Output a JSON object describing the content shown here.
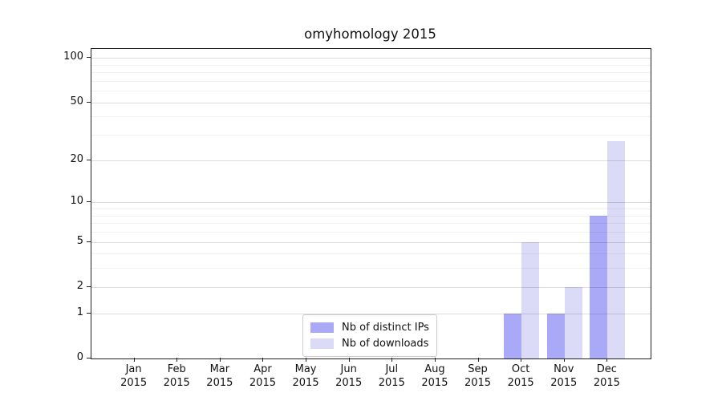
{
  "title": "omyhomology 2015",
  "chart_data": {
    "type": "bar",
    "title": "omyhomology 2015",
    "categories": [
      "Jan",
      "Feb",
      "Mar",
      "Apr",
      "May",
      "Jun",
      "Jul",
      "Aug",
      "Sep",
      "Oct",
      "Nov",
      "Dec"
    ],
    "x_year_label": "2015",
    "series": [
      {
        "name": "Nb of distinct IPs",
        "color": "#a9a9f8",
        "values": [
          0,
          0,
          0,
          0,
          0,
          0,
          0,
          0,
          0,
          1,
          1,
          8
        ]
      },
      {
        "name": "Nb of downloads",
        "color": "#dbdbf8",
        "values": [
          0,
          0,
          0,
          0,
          0,
          0,
          0,
          0,
          0,
          5,
          2,
          27
        ]
      }
    ],
    "xlabel": "",
    "ylabel": "",
    "y_scale": "log10(1+y)",
    "y_ticks": [
      0,
      1,
      2,
      5,
      10,
      20,
      50,
      100
    ],
    "y_minor_gridlines": [
      3,
      4,
      6,
      7,
      8,
      9,
      30,
      40,
      60,
      70,
      80,
      90
    ],
    "ylim": [
      0,
      115
    ],
    "grid": "horizontal",
    "legend_position": "lower center"
  },
  "colors": {
    "series_ips": "#a9a9f8",
    "series_downloads": "#dbdbf8",
    "text": "#111111",
    "background": "#ffffff"
  }
}
